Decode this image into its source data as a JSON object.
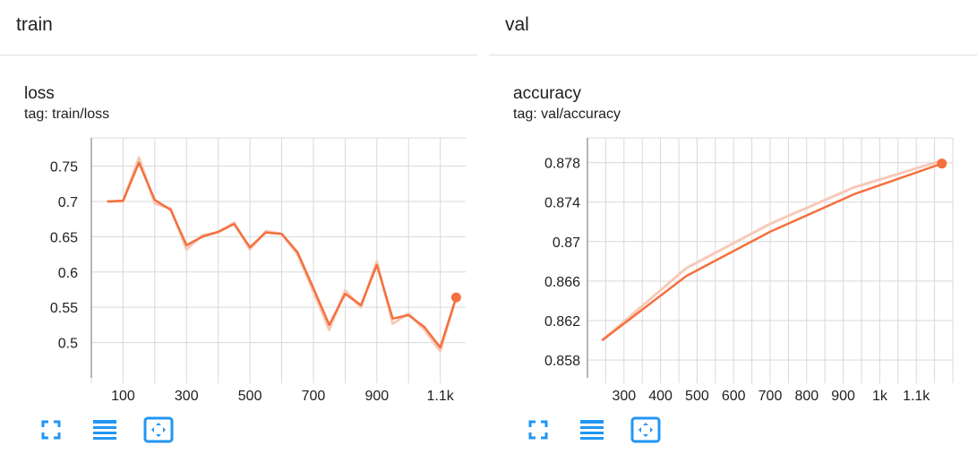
{
  "groups": {
    "left": {
      "title": "train"
    },
    "right": {
      "title": "val"
    }
  },
  "toolbar_icons": [
    "fullscreen-icon",
    "list-icon",
    "fit-to-data-icon"
  ],
  "colors": {
    "line": "#f4703e",
    "line_raw": "#f8c9b8",
    "grid": "#d9d9d9",
    "axis": "#9e9e9e",
    "icon": "#2196f3"
  },
  "chart_data": [
    {
      "type": "line",
      "title": "loss",
      "tag": "tag: train/loss",
      "xlim": [
        0,
        1180
      ],
      "ylim": [
        0.45,
        0.79
      ],
      "x_ticks": [
        100,
        300,
        500,
        700,
        900,
        1100
      ],
      "x_tick_labels": [
        "100",
        "300",
        "500",
        "700",
        "900",
        "1.1k"
      ],
      "y_ticks": [
        0.5,
        0.55,
        0.6,
        0.65,
        0.7,
        0.75
      ],
      "y_tick_labels": [
        "0.5",
        "0.55",
        "0.6",
        "0.65",
        "0.7",
        "0.75"
      ],
      "grid": true,
      "series": [
        {
          "x": [
            50,
            100,
            150,
            200,
            250,
            300,
            350,
            400,
            450,
            500,
            550,
            600,
            650,
            700,
            750,
            800,
            850,
            900,
            950,
            1000,
            1050,
            1100,
            1150
          ],
          "y": [
            0.7,
            0.701,
            0.755,
            0.702,
            0.688,
            0.638,
            0.65,
            0.657,
            0.668,
            0.635,
            0.656,
            0.654,
            0.628,
            0.577,
            0.525,
            0.569,
            0.553,
            0.61,
            0.534,
            0.539,
            0.522,
            0.493,
            0.564
          ],
          "raw_y": [
            0.7,
            0.7,
            0.762,
            0.697,
            0.69,
            0.632,
            0.652,
            0.656,
            0.67,
            0.632,
            0.658,
            0.654,
            0.625,
            0.572,
            0.518,
            0.574,
            0.55,
            0.615,
            0.527,
            0.541,
            0.518,
            0.488,
            0.564
          ]
        }
      ]
    },
    {
      "type": "line",
      "title": "accuracy",
      "tag": "tag: val/accuracy",
      "xlim": [
        200,
        1200
      ],
      "ylim": [
        0.8562,
        0.8805
      ],
      "x_ticks": [
        300,
        400,
        500,
        600,
        700,
        800,
        900,
        1000,
        1100
      ],
      "x_tick_labels": [
        "300",
        "400",
        "500",
        "600",
        "700",
        "800",
        "900",
        "1k",
        "1.1k"
      ],
      "y_ticks": [
        0.858,
        0.862,
        0.866,
        0.87,
        0.874,
        0.878
      ],
      "y_tick_labels": [
        "0.858",
        "0.862",
        "0.866",
        "0.87",
        "0.874",
        "0.878"
      ],
      "grid": true,
      "series": [
        {
          "x": [
            240,
            470,
            700,
            930,
            1170
          ],
          "y": [
            0.86,
            0.8665,
            0.871,
            0.8748,
            0.8779
          ],
          "raw_y": [
            0.86,
            0.8673,
            0.8718,
            0.8755,
            0.8782
          ]
        }
      ]
    }
  ]
}
